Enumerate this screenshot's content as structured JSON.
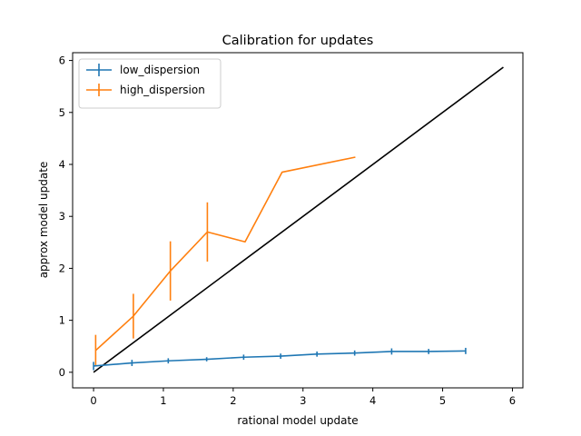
{
  "chart_data": {
    "type": "line",
    "title": "Calibration for updates",
    "xlabel": "rational model update",
    "ylabel": "approx model update",
    "xlim": [
      -0.3,
      6.15
    ],
    "ylim": [
      -0.3,
      6.15
    ],
    "xticks": [
      0,
      1,
      2,
      3,
      4,
      5,
      6
    ],
    "yticks": [
      0,
      1,
      2,
      3,
      4,
      5,
      6
    ],
    "legend_position": "top-left",
    "grid": false,
    "series": [
      {
        "name": "low_dispersion",
        "color": "#1f77b4",
        "x": [
          0.0,
          0.55,
          1.07,
          1.62,
          2.15,
          2.68,
          3.2,
          3.74,
          4.27,
          4.8,
          5.33
        ],
        "y": [
          0.12,
          0.18,
          0.22,
          0.25,
          0.29,
          0.31,
          0.35,
          0.37,
          0.4,
          0.4,
          0.41
        ],
        "yerr": [
          0.08,
          0.06,
          0.05,
          0.04,
          0.05,
          0.05,
          0.05,
          0.05,
          0.06,
          0.05,
          0.06
        ]
      },
      {
        "name": "high_dispersion",
        "color": "#ff7f0e",
        "x": [
          0.03,
          0.57,
          1.1,
          1.63,
          2.17,
          2.7,
          3.75
        ],
        "y": [
          0.42,
          1.08,
          1.95,
          2.7,
          2.51,
          3.85,
          4.14
        ],
        "yerr": [
          0.3,
          0.43,
          0.57,
          0.57,
          0,
          0,
          0
        ]
      },
      {
        "name": "",
        "color": "#000000",
        "x": [
          0.0,
          5.87
        ],
        "y": [
          0.0,
          5.87
        ],
        "yerr": []
      }
    ]
  }
}
